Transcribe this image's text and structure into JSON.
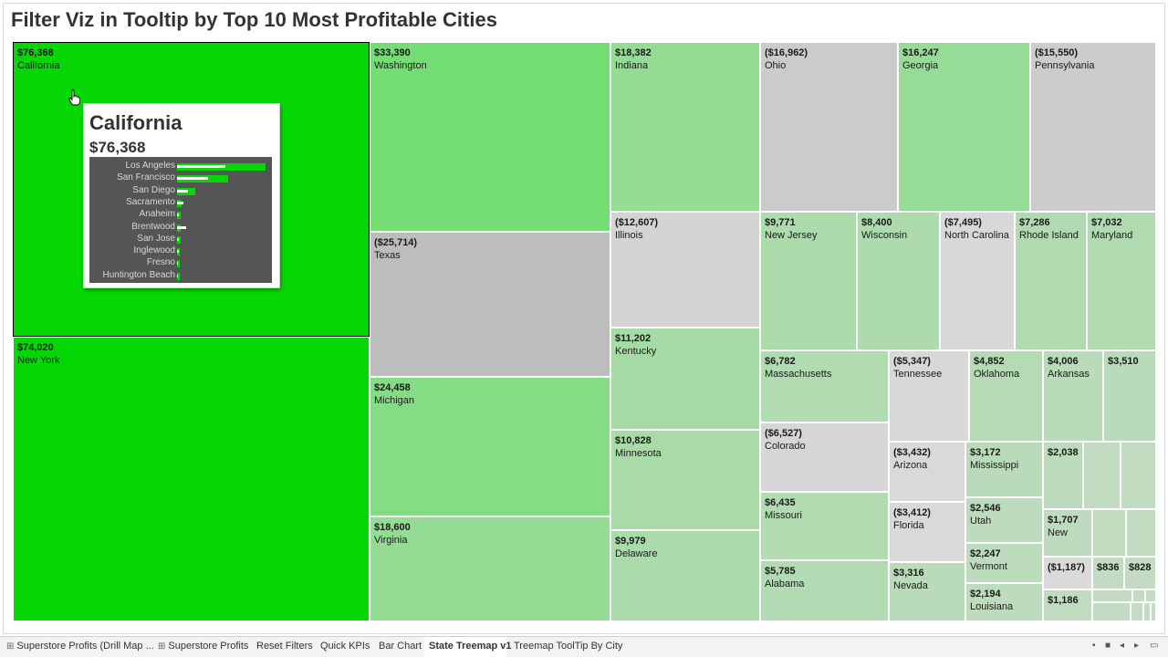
{
  "title": "Filter Viz in Tooltip by Top 10 Most Profitable Cities",
  "treemap": [
    {
      "id": "california",
      "value": "$76,368",
      "name": "California",
      "color": "#05d705",
      "selected": true
    },
    {
      "id": "new-york",
      "value": "$74,020",
      "name": "New York",
      "color": "#05d705"
    },
    {
      "id": "washington",
      "value": "$33,390",
      "name": "Washington",
      "color": "#74dd74"
    },
    {
      "id": "texas",
      "value": "($25,714)",
      "name": "Texas",
      "color": "#bdbdbd"
    },
    {
      "id": "michigan",
      "value": "$24,458",
      "name": "Michigan",
      "color": "#84dc84"
    },
    {
      "id": "virginia",
      "value": "$18,600",
      "name": "Virginia",
      "color": "#94db94"
    },
    {
      "id": "indiana",
      "value": "$18,382",
      "name": "Indiana",
      "color": "#94db94"
    },
    {
      "id": "illinois",
      "value": "($12,607)",
      "name": "Illinois",
      "color": "#d4d4d4"
    },
    {
      "id": "kentucky",
      "value": "$11,202",
      "name": "Kentucky",
      "color": "#a6dba6"
    },
    {
      "id": "minnesota",
      "value": "$10,828",
      "name": "Minnesota",
      "color": "#a8dba8"
    },
    {
      "id": "delaware",
      "value": "$9,979",
      "name": "Delaware",
      "color": "#abdbab"
    },
    {
      "id": "ohio",
      "value": "($16,962)",
      "name": "Ohio",
      "color": "#cbcbcb"
    },
    {
      "id": "georgia",
      "value": "$16,247",
      "name": "Georgia",
      "color": "#96db96"
    },
    {
      "id": "pennsylvania",
      "value": "($15,550)",
      "name": "Pennsylvania",
      "color": "#cccccc"
    },
    {
      "id": "new-jersey",
      "value": "$9,771",
      "name": "New Jersey",
      "color": "#acdbac"
    },
    {
      "id": "wisconsin",
      "value": "$8,400",
      "name": "Wisconsin",
      "color": "#aedbae"
    },
    {
      "id": "north-carolina",
      "value": "($7,495)",
      "name": "North Carolina",
      "color": "#d8d8d8"
    },
    {
      "id": "rhode-island",
      "value": "$7,286",
      "name": "Rhode Island",
      "color": "#b0dbb0"
    },
    {
      "id": "maryland",
      "value": "$7,032",
      "name": "Maryland",
      "color": "#b0dbb0"
    },
    {
      "id": "massachusetts",
      "value": "$6,782",
      "name": "Massachusetts",
      "color": "#b1dbb1"
    },
    {
      "id": "tennessee",
      "value": "($5,347)",
      "name": "Tennessee",
      "color": "#d8d8d8"
    },
    {
      "id": "oklahoma",
      "value": "$4,852",
      "name": "Oklahoma",
      "color": "#b5dbb5"
    },
    {
      "id": "arkansas",
      "value": "$4,006",
      "name": "Arkansas",
      "color": "#b8dbb8"
    },
    {
      "id": "unnamed-3510",
      "value": "$3,510",
      "name": "",
      "color": "#b9dbb9"
    },
    {
      "id": "colorado",
      "value": "($6,527)",
      "name": "Colorado",
      "color": "#d6d6d6"
    },
    {
      "id": "arizona",
      "value": "($3,432)",
      "name": "Arizona",
      "color": "#d9d9d9"
    },
    {
      "id": "mississippi",
      "value": "$3,172",
      "name": "Mississippi",
      "color": "#badbba"
    },
    {
      "id": "unnamed-2038",
      "value": "$2,038",
      "name": "",
      "color": "#bcdbbc"
    },
    {
      "id": "missouri",
      "value": "$6,435",
      "name": "Missouri",
      "color": "#b2dbb2"
    },
    {
      "id": "florida",
      "value": "($3,412)",
      "name": "Florida",
      "color": "#d9d9d9"
    },
    {
      "id": "utah",
      "value": "$2,546",
      "name": "Utah",
      "color": "#bddbbd"
    },
    {
      "id": "new-partial",
      "value": "$1,707",
      "name": "New",
      "color": "#bfdbbf"
    },
    {
      "id": "vermont",
      "value": "$2,247",
      "name": "Vermont",
      "color": "#bddbbd"
    },
    {
      "id": "unnamed-neg1187",
      "value": "($1,187)",
      "name": "",
      "color": "#dadada"
    },
    {
      "id": "unnamed-836",
      "value": "$836",
      "name": "",
      "color": "#c2dbc2"
    },
    {
      "id": "unnamed-828",
      "value": "$828",
      "name": "",
      "color": "#c2dbc2"
    },
    {
      "id": "alabama",
      "value": "$5,785",
      "name": "Alabama",
      "color": "#b3dbb3"
    },
    {
      "id": "nevada",
      "value": "$3,316",
      "name": "Nevada",
      "color": "#badbba"
    },
    {
      "id": "louisiana",
      "value": "$2,194",
      "name": "Louisiana",
      "color": "#bddbbd"
    },
    {
      "id": "unnamed-1186",
      "value": "$1,186",
      "name": "",
      "color": "#c1dbc1"
    },
    {
      "id": "small-a",
      "value": "",
      "name": "",
      "color": "#c0dbc0"
    },
    {
      "id": "small-b",
      "value": "",
      "name": "",
      "color": "#c0dbc0"
    },
    {
      "id": "small-c",
      "value": "",
      "name": "",
      "color": "#c1dbc1"
    },
    {
      "id": "small-d",
      "value": "",
      "name": "",
      "color": "#c1dbc1"
    },
    {
      "id": "small-e",
      "value": "",
      "name": "",
      "color": "#c2dbc2"
    },
    {
      "id": "small-f",
      "value": "",
      "name": "",
      "color": "#c2dbc2"
    },
    {
      "id": "small-g",
      "value": "",
      "name": "",
      "color": "#c3dbc3"
    },
    {
      "id": "small-h",
      "value": "",
      "name": "",
      "color": "#c3dbc3"
    },
    {
      "id": "small-i",
      "value": "",
      "name": "",
      "color": "#c4dbc4"
    },
    {
      "id": "small-j",
      "value": "",
      "name": "",
      "color": "#c4dbc4"
    },
    {
      "id": "small-k",
      "value": "",
      "name": "",
      "color": "#c4dbc4"
    }
  ],
  "tooltip": {
    "state": "California",
    "profit": "$76,368",
    "cities": [
      {
        "city": "Los Angeles",
        "green": 1.0,
        "white": 0.55
      },
      {
        "city": "San Francisco",
        "green": 0.58,
        "white": 0.35
      },
      {
        "city": "San Diego",
        "green": 0.21,
        "white": 0.12
      },
      {
        "city": "Sacramento",
        "green": 0.05,
        "white": 0.07
      },
      {
        "city": "Anaheim",
        "green": 0.04,
        "white": 0.02
      },
      {
        "city": "Brentwood",
        "green": 0.04,
        "white": 0.1
      },
      {
        "city": "San Jose",
        "green": 0.04,
        "white": 0.02
      },
      {
        "city": "Inglewood",
        "green": 0.03,
        "white": 0.02
      },
      {
        "city": "Fresno",
        "green": 0.03,
        "white": 0.01
      },
      {
        "city": "Huntington Beach",
        "green": 0.03,
        "white": 0.01
      }
    ],
    "colors": {
      "bar": "#05d705",
      "ref": "#ffffff",
      "bg": "#555555"
    }
  },
  "tabs": [
    {
      "label": "Superstore Profits (Drill Map ...",
      "icon": "grid-icon",
      "active": false
    },
    {
      "label": "Superstore Profits",
      "icon": "grid-icon",
      "active": false
    },
    {
      "label": "Reset Filters",
      "icon": "",
      "active": false
    },
    {
      "label": "Quick KPIs",
      "icon": "",
      "active": false
    },
    {
      "label": "Bar Chart",
      "icon": "",
      "active": false
    },
    {
      "label": "State Treemap v1",
      "icon": "",
      "active": true
    },
    {
      "label": "Treemap ToolTip By City",
      "icon": "",
      "active": false
    }
  ],
  "nav": {
    "first_icon": "first-icon",
    "grid_icon": "sheet-grid-icon",
    "prev_icon": "prev-icon",
    "next_icon": "next-icon",
    "present_icon": "presentation-icon"
  }
}
